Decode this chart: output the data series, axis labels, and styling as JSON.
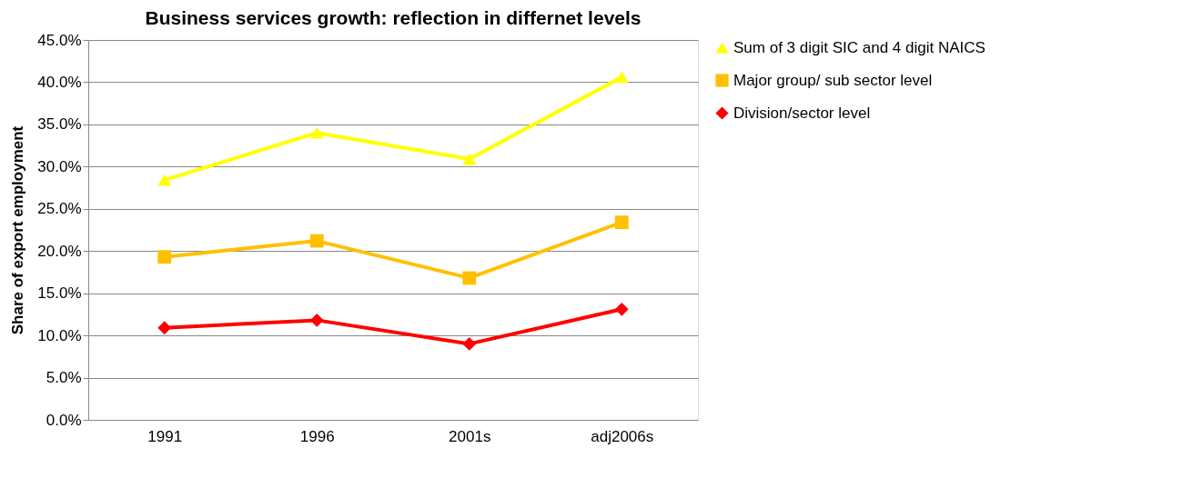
{
  "chart_data": {
    "type": "line",
    "title": "Business services growth: reflection in differnet levels",
    "ylabel": "Share of export employment",
    "categories": [
      "1991",
      "1996",
      "2001s",
      "adj2006s"
    ],
    "series": [
      {
        "name": "Sum of 3 digit SIC and 4 digit NAICS",
        "color": "#ffff00",
        "marker": "triangle",
        "values": [
          28.4,
          34.0,
          30.9,
          40.6
        ]
      },
      {
        "name": "Major group/ sub sector level",
        "color": "#ffc000",
        "marker": "square",
        "values": [
          19.3,
          21.2,
          16.8,
          23.4
        ]
      },
      {
        "name": "Division/sector level",
        "color": "#ff0000",
        "marker": "diamond",
        "values": [
          10.9,
          11.8,
          9.0,
          13.1
        ]
      }
    ],
    "ylim": [
      0,
      45
    ],
    "yticks": [
      {
        "value": 0,
        "label": "0.0%"
      },
      {
        "value": 5,
        "label": "5.0%"
      },
      {
        "value": 10,
        "label": "10.0%"
      },
      {
        "value": 15,
        "label": "15.0%"
      },
      {
        "value": 20,
        "label": "20.0%"
      },
      {
        "value": 25,
        "label": "25.0%"
      },
      {
        "value": 30,
        "label": "30.0%"
      },
      {
        "value": 35,
        "label": "35.0%"
      },
      {
        "value": 40,
        "label": "40.0%"
      },
      {
        "value": 45,
        "label": "45.0%"
      }
    ],
    "grid": "y",
    "legend": "right",
    "line_style": "solid"
  }
}
